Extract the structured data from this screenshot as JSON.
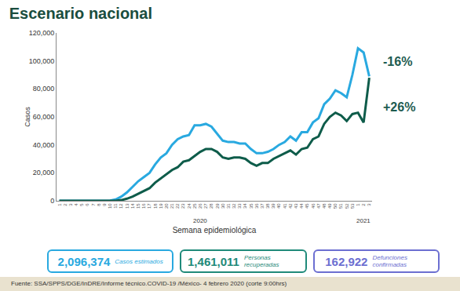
{
  "chart_data": {
    "type": "line",
    "title": "Escenario nacional",
    "x_label": "Semana epidemiológica",
    "y_label": "Casos",
    "categories": [
      "1",
      "2",
      "3",
      "4",
      "5",
      "6",
      "7",
      "8",
      "9",
      "10",
      "11",
      "12",
      "13",
      "14",
      "15",
      "16",
      "17",
      "18",
      "19",
      "20",
      "21",
      "22",
      "23",
      "24",
      "25",
      "26",
      "27",
      "28",
      "29",
      "30",
      "31",
      "32",
      "33",
      "34",
      "35",
      "36",
      "37",
      "38",
      "39",
      "40",
      "41",
      "42",
      "43",
      "44",
      "45",
      "46",
      "47",
      "48",
      "49",
      "50",
      "51",
      "52",
      "53",
      "1",
      "2",
      "3"
    ],
    "series": [
      {
        "color": "#29a9e0",
        "line_style": "solid",
        "values": [
          0,
          0,
          0,
          0,
          0,
          0,
          0,
          0,
          0,
          200,
          1000,
          3000,
          6000,
          10000,
          14000,
          17000,
          20000,
          26000,
          31000,
          34000,
          40000,
          44000,
          46000,
          47000,
          54000,
          54000,
          55000,
          53000,
          48000,
          43000,
          42000,
          42000,
          41000,
          41000,
          37000,
          34000,
          34000,
          35000,
          37000,
          40000,
          42000,
          46000,
          43000,
          49000,
          49000,
          56000,
          59000,
          69000,
          73000,
          79000,
          77000,
          74000,
          90000,
          109000,
          106000,
          89000
        ]
      },
      {
        "color": "#0e5c4a",
        "line_style": "solid",
        "values": [
          0,
          0,
          0,
          0,
          0,
          0,
          0,
          0,
          0,
          0,
          0,
          500,
          1500,
          3000,
          5000,
          7000,
          9000,
          13000,
          16000,
          19000,
          22000,
          24000,
          28000,
          29000,
          32000,
          35000,
          37000,
          37000,
          35000,
          31000,
          30000,
          31000,
          31000,
          30000,
          27000,
          25000,
          27000,
          27000,
          30000,
          32000,
          34000,
          36000,
          33000,
          37000,
          38000,
          44000,
          46000,
          55000,
          60000,
          63000,
          61000,
          57000,
          62000,
          63000,
          56000,
          88000
        ]
      }
    ],
    "ylim": [
      0,
      120000
    ],
    "yticks": [
      0,
      {
        "value": 20000,
        "label": "20,000"
      },
      {
        "value": 40000,
        "label": "40,000"
      },
      {
        "value": 60000,
        "label": "60,000"
      },
      {
        "value": 80000,
        "label": "80,000"
      },
      {
        "value": 100000,
        "label": "100,000"
      },
      {
        "value": 120000,
        "label": "120,000"
      }
    ],
    "grid": false,
    "annotations": [
      {
        "text": "2020"
      },
      {
        "text": "2021"
      },
      {
        "text": "-16%",
        "color": "#1d5b50"
      },
      {
        "text": "+26%",
        "color": "#1d5b50"
      }
    ]
  },
  "summary": [
    {
      "value": "2,096,374",
      "label": "Casos estimados",
      "color": "#29a9e0"
    },
    {
      "value": "1,461,011",
      "label": "Personas recuperadas",
      "color": "#1f8a7a"
    },
    {
      "value": "162,922",
      "label": "Defunciones confirmadas",
      "color": "#6c6fd1"
    }
  ],
  "source": "Fuente: SSA/SPPS/DGE/InDRE/Informe técnico.COVID-19 /México- 4 febrero 2020 (corte 9:00hrs)"
}
